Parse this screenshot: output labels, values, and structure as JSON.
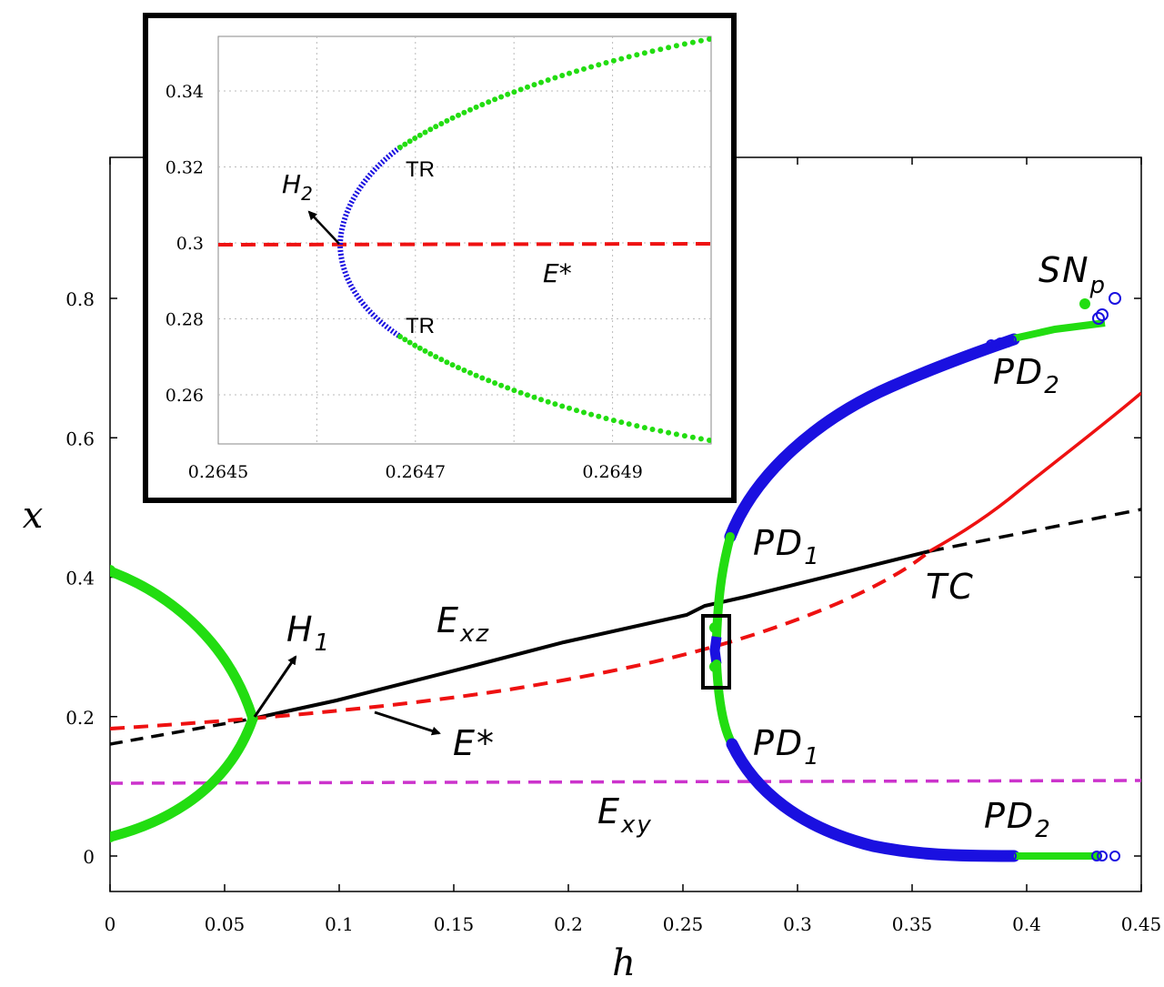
{
  "colors": {
    "green": "#22dd11",
    "blue": "#1a10e0",
    "red": "#ee1111",
    "black": "#000000",
    "magenta": "#cc33cc"
  },
  "chart_data": [
    {
      "type": "line",
      "xlabel": "h",
      "ylabel": "x",
      "xlim": [
        0,
        0.45
      ],
      "ylim": [
        -0.05,
        1.0
      ],
      "xticks": [
        "0",
        "0.05",
        "0.1",
        "0.15",
        "0.2",
        "0.25",
        "0.3",
        "0.35",
        "0.4",
        "0.45"
      ],
      "yticks": [
        "0",
        "0.2",
        "0.4",
        "0.6",
        "0.8"
      ],
      "grid": false,
      "series": [
        {
          "name": "E_xz",
          "style": "solid-then-dashed",
          "color": "#000000",
          "x": [
            0,
            0.063,
            0.1,
            0.16,
            0.25,
            0.27,
            0.362,
            0.45
          ],
          "y": [
            0.16,
            0.197,
            0.235,
            0.272,
            0.345,
            0.36,
            0.432,
            0.495
          ]
        },
        {
          "name": "E*",
          "style": "dashed-then-solid",
          "color": "#ee1111",
          "x": [
            0,
            0.063,
            0.15,
            0.25,
            0.3,
            0.36,
            0.4,
            0.45
          ],
          "y": [
            0.183,
            0.197,
            0.231,
            0.287,
            0.338,
            0.425,
            0.505,
            0.66
          ]
        },
        {
          "name": "E_xy",
          "style": "dashed",
          "color": "#cc33cc",
          "x": [
            0,
            0.45
          ],
          "y": [
            0.105,
            0.107
          ]
        },
        {
          "name": "H1 branch",
          "style": "green-dots",
          "color": "#22dd11",
          "x": [
            0.063,
            0.055,
            0.04,
            0.02,
            0
          ],
          "y_upper": [
            0.197,
            0.25,
            0.32,
            0.375,
            0.41
          ],
          "y_lower": [
            0.197,
            0.15,
            0.09,
            0.045,
            0.025
          ]
        },
        {
          "name": "Upper periodic branch",
          "style": "dots",
          "colors": [
            "green",
            "blue",
            "green"
          ],
          "x": [
            0.2646,
            0.266,
            0.272,
            0.3,
            0.35,
            0.385,
            0.395,
            0.42,
            0.437,
            0.44
          ],
          "y": [
            0.31,
            0.36,
            0.455,
            0.615,
            0.705,
            0.738,
            0.748,
            0.765,
            0.775,
            0.77
          ]
        },
        {
          "name": "Lower periodic branch",
          "style": "dots",
          "colors": [
            "green",
            "blue",
            "green"
          ],
          "x": [
            0.2646,
            0.267,
            0.273,
            0.3,
            0.33,
            0.36,
            0.38,
            0.4,
            0.44
          ],
          "y": [
            0.27,
            0.2,
            0.16,
            0.07,
            0.025,
            0.007,
            0.002,
            0.0,
            0.0
          ]
        }
      ],
      "annotations": [
        {
          "text": "H",
          "sub": "1",
          "x": 0.08,
          "y": 0.32
        },
        {
          "text": "E",
          "sub": "xz",
          "x": 0.145,
          "y": 0.33
        },
        {
          "text": "E*",
          "sub": "",
          "x": 0.15,
          "y": 0.16
        },
        {
          "text": "E",
          "sub": "xy",
          "x": 0.215,
          "y": 0.05
        },
        {
          "text": "PD",
          "sub": "1",
          "x": 0.283,
          "y": 0.44
        },
        {
          "text": "PD",
          "sub": "1",
          "x": 0.283,
          "y": 0.16
        },
        {
          "text": "TC",
          "sub": "",
          "x": 0.36,
          "y": 0.38
        },
        {
          "text": "SN",
          "sub": "p",
          "x": 0.408,
          "y": 0.84
        },
        {
          "text": "PD",
          "sub": "2",
          "x": 0.388,
          "y": 0.68
        },
        {
          "text": "PD",
          "sub": "2",
          "x": 0.383,
          "y": 0.06
        }
      ]
    },
    {
      "type": "line",
      "title": "",
      "xlim": [
        0.2645,
        0.265
      ],
      "ylim": [
        0.248,
        0.353
      ],
      "xticks": [
        "0.2645",
        "0.2647",
        "0.2649"
      ],
      "yticks": [
        "0.26",
        "0.28",
        "0.3",
        "0.32",
        "0.34"
      ],
      "grid": true,
      "series": [
        {
          "name": "E*",
          "style": "dashed",
          "color": "#ee1111",
          "x": [
            0.2645,
            0.265
          ],
          "y": [
            0.2998,
            0.2998
          ]
        },
        {
          "name": "Periodic branch",
          "style": "dots",
          "colors": [
            "blue",
            "green"
          ],
          "vertex": [
            0.26462,
            0.2998
          ],
          "tr_upper": [
            0.26469,
            0.3235
          ],
          "tr_lower": [
            0.26469,
            0.2755
          ],
          "end_upper": [
            0.265,
            0.352
          ],
          "end_lower": [
            0.265,
            0.2505
          ]
        }
      ],
      "annotations": [
        {
          "text": "H",
          "sub": "2"
        },
        {
          "text": "E*",
          "sub": ""
        },
        {
          "text": "TR",
          "sub": ""
        },
        {
          "text": "TR",
          "sub": ""
        }
      ]
    }
  ]
}
